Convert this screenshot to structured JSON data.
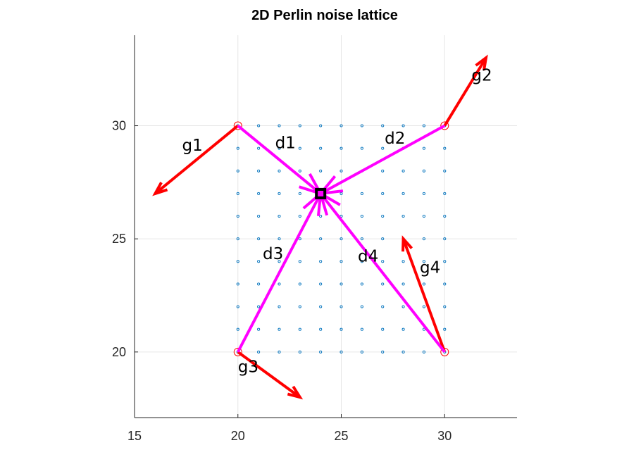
{
  "chart_data": {
    "type": "scatter",
    "title": "2D Perlin noise lattice",
    "xlabel": "",
    "ylabel": "",
    "xlim": [
      15,
      33.5
    ],
    "ylim": [
      17.1,
      34
    ],
    "xticks": [
      15,
      20,
      25,
      30
    ],
    "yticks": [
      20,
      25,
      30
    ],
    "grid": true,
    "axis_box": "left-bottom",
    "colors": {
      "grid": "#e6e6e6",
      "axis": "#262626",
      "samples": "#0072bd",
      "corners": "#ff0000",
      "gradients": "#ff0000",
      "distance_vectors": "#ff00ff",
      "query_point": "#000000"
    },
    "sample_points": {
      "x": [
        20,
        21,
        22,
        23,
        24,
        25,
        26,
        27,
        28,
        29,
        30
      ],
      "y": [
        20,
        21,
        22,
        23,
        24,
        25,
        26,
        27,
        28,
        29,
        30
      ]
    },
    "corners": [
      {
        "x": 20,
        "y": 30
      },
      {
        "x": 30,
        "y": 30
      },
      {
        "x": 20,
        "y": 20
      },
      {
        "x": 30,
        "y": 20
      }
    ],
    "gradient_vectors": [
      {
        "label": "g1",
        "x0": 20,
        "y0": 30,
        "x1": 16,
        "y1": 27,
        "label_x": 17.3,
        "label_y": 28.9
      },
      {
        "label": "g2",
        "x0": 30,
        "y0": 30,
        "x1": 32,
        "y1": 33,
        "label_x": 31.3,
        "label_y": 32
      },
      {
        "label": "g3",
        "x0": 20,
        "y0": 20,
        "x1": 23,
        "y1": 18,
        "label_x": 20,
        "label_y": 19.1
      },
      {
        "label": "g4",
        "x0": 30,
        "y0": 20,
        "x1": 28,
        "y1": 25,
        "label_x": 28.8,
        "label_y": 23.5
      }
    ],
    "query_point": {
      "x": 24,
      "y": 27
    },
    "distance_vectors": [
      {
        "label": "d1",
        "x0": 20,
        "y0": 30,
        "x1": 24,
        "y1": 27,
        "label_x": 21.8,
        "label_y": 29
      },
      {
        "label": "d2",
        "x0": 30,
        "y0": 30,
        "x1": 24,
        "y1": 27,
        "label_x": 27.1,
        "label_y": 29.2
      },
      {
        "label": "d3",
        "x0": 20,
        "y0": 20,
        "x1": 24,
        "y1": 27,
        "label_x": 21.2,
        "label_y": 24.1
      },
      {
        "label": "d4",
        "x0": 30,
        "y0": 20,
        "x1": 24,
        "y1": 27,
        "label_x": 25.8,
        "label_y": 24
      }
    ]
  }
}
